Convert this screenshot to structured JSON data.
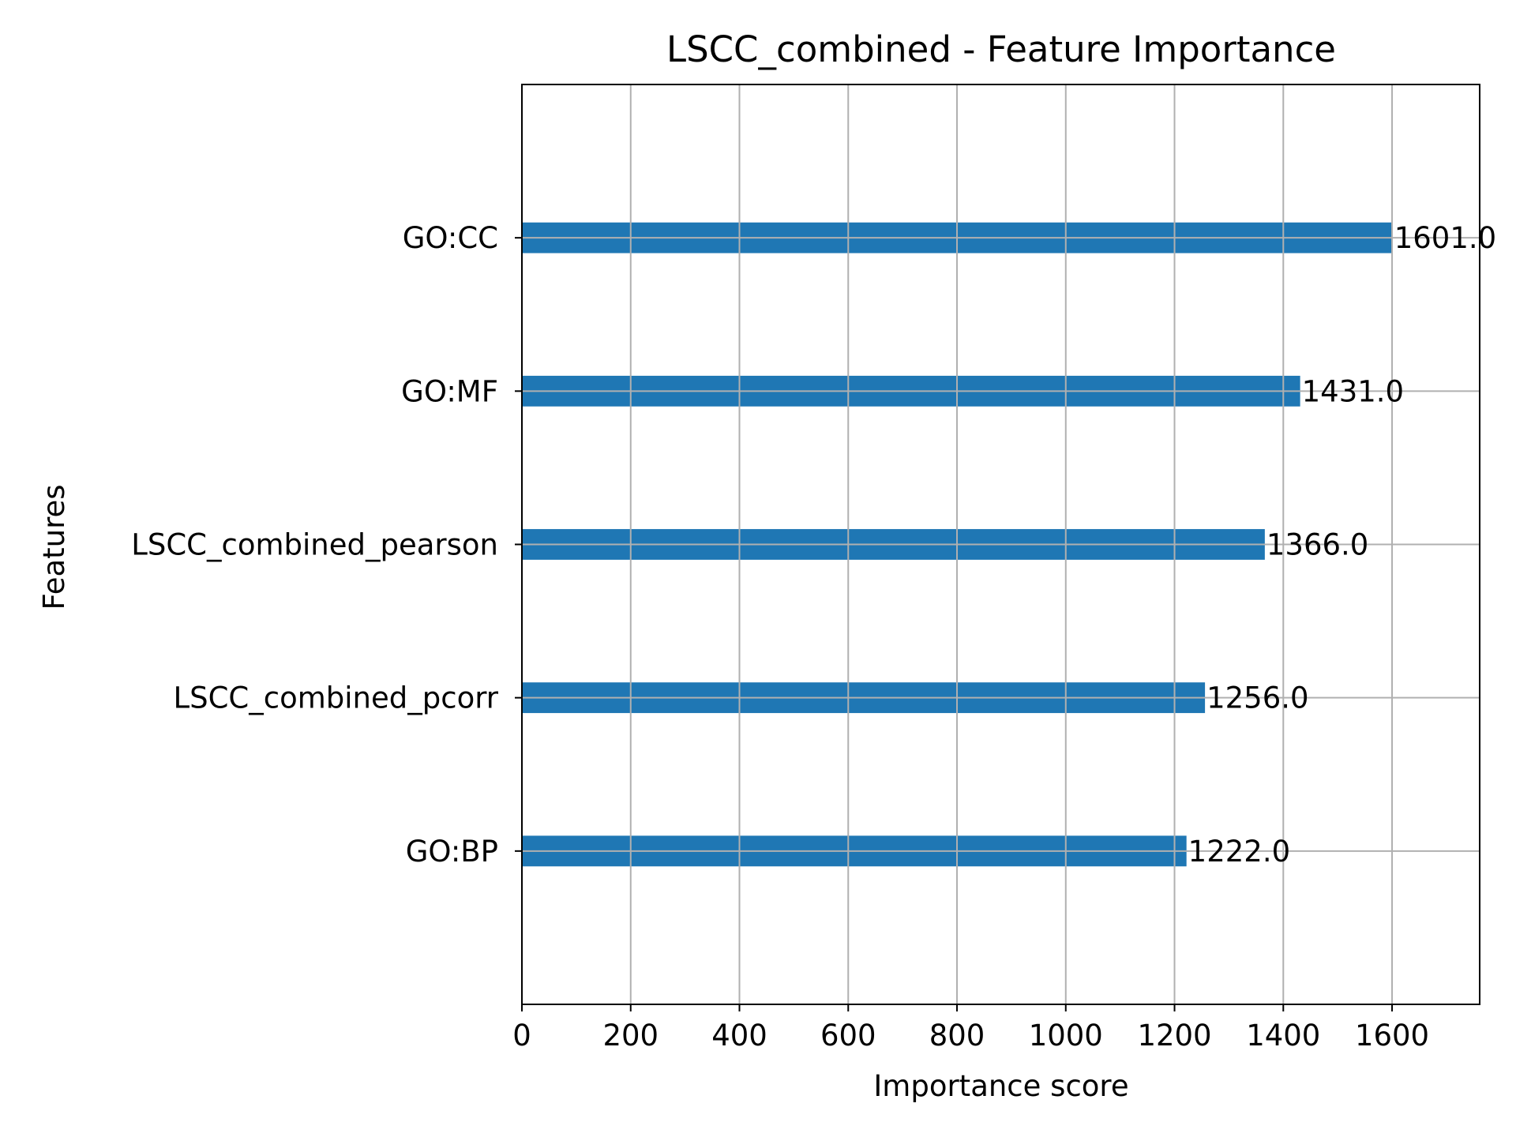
{
  "chart_data": {
    "type": "bar",
    "orientation": "horizontal",
    "title": "LSCC_combined - Feature Importance",
    "xlabel": "Importance score",
    "ylabel": "Features",
    "categories": [
      "GO:BP",
      "LSCC_combined_pcorr",
      "LSCC_combined_pearson",
      "GO:MF",
      "GO:CC"
    ],
    "values": [
      1222,
      1256,
      1366,
      1431,
      1601
    ],
    "data_labels": [
      "1222.0",
      "1256.0",
      "1366.0",
      "1431.0",
      "1601.0"
    ],
    "xlim": [
      0,
      1761.1
    ],
    "xticks": [
      0,
      200,
      400,
      600,
      800,
      1000,
      1200,
      1400,
      1600
    ],
    "xtick_labels": [
      "0",
      "200",
      "400",
      "600",
      "800",
      "1000",
      "1200",
      "1400",
      "1600"
    ],
    "grid": true,
    "legend": "none",
    "colors": {
      "bar": "#1f77b4",
      "grid": "#b0b0b0",
      "axes": "#000000"
    }
  }
}
